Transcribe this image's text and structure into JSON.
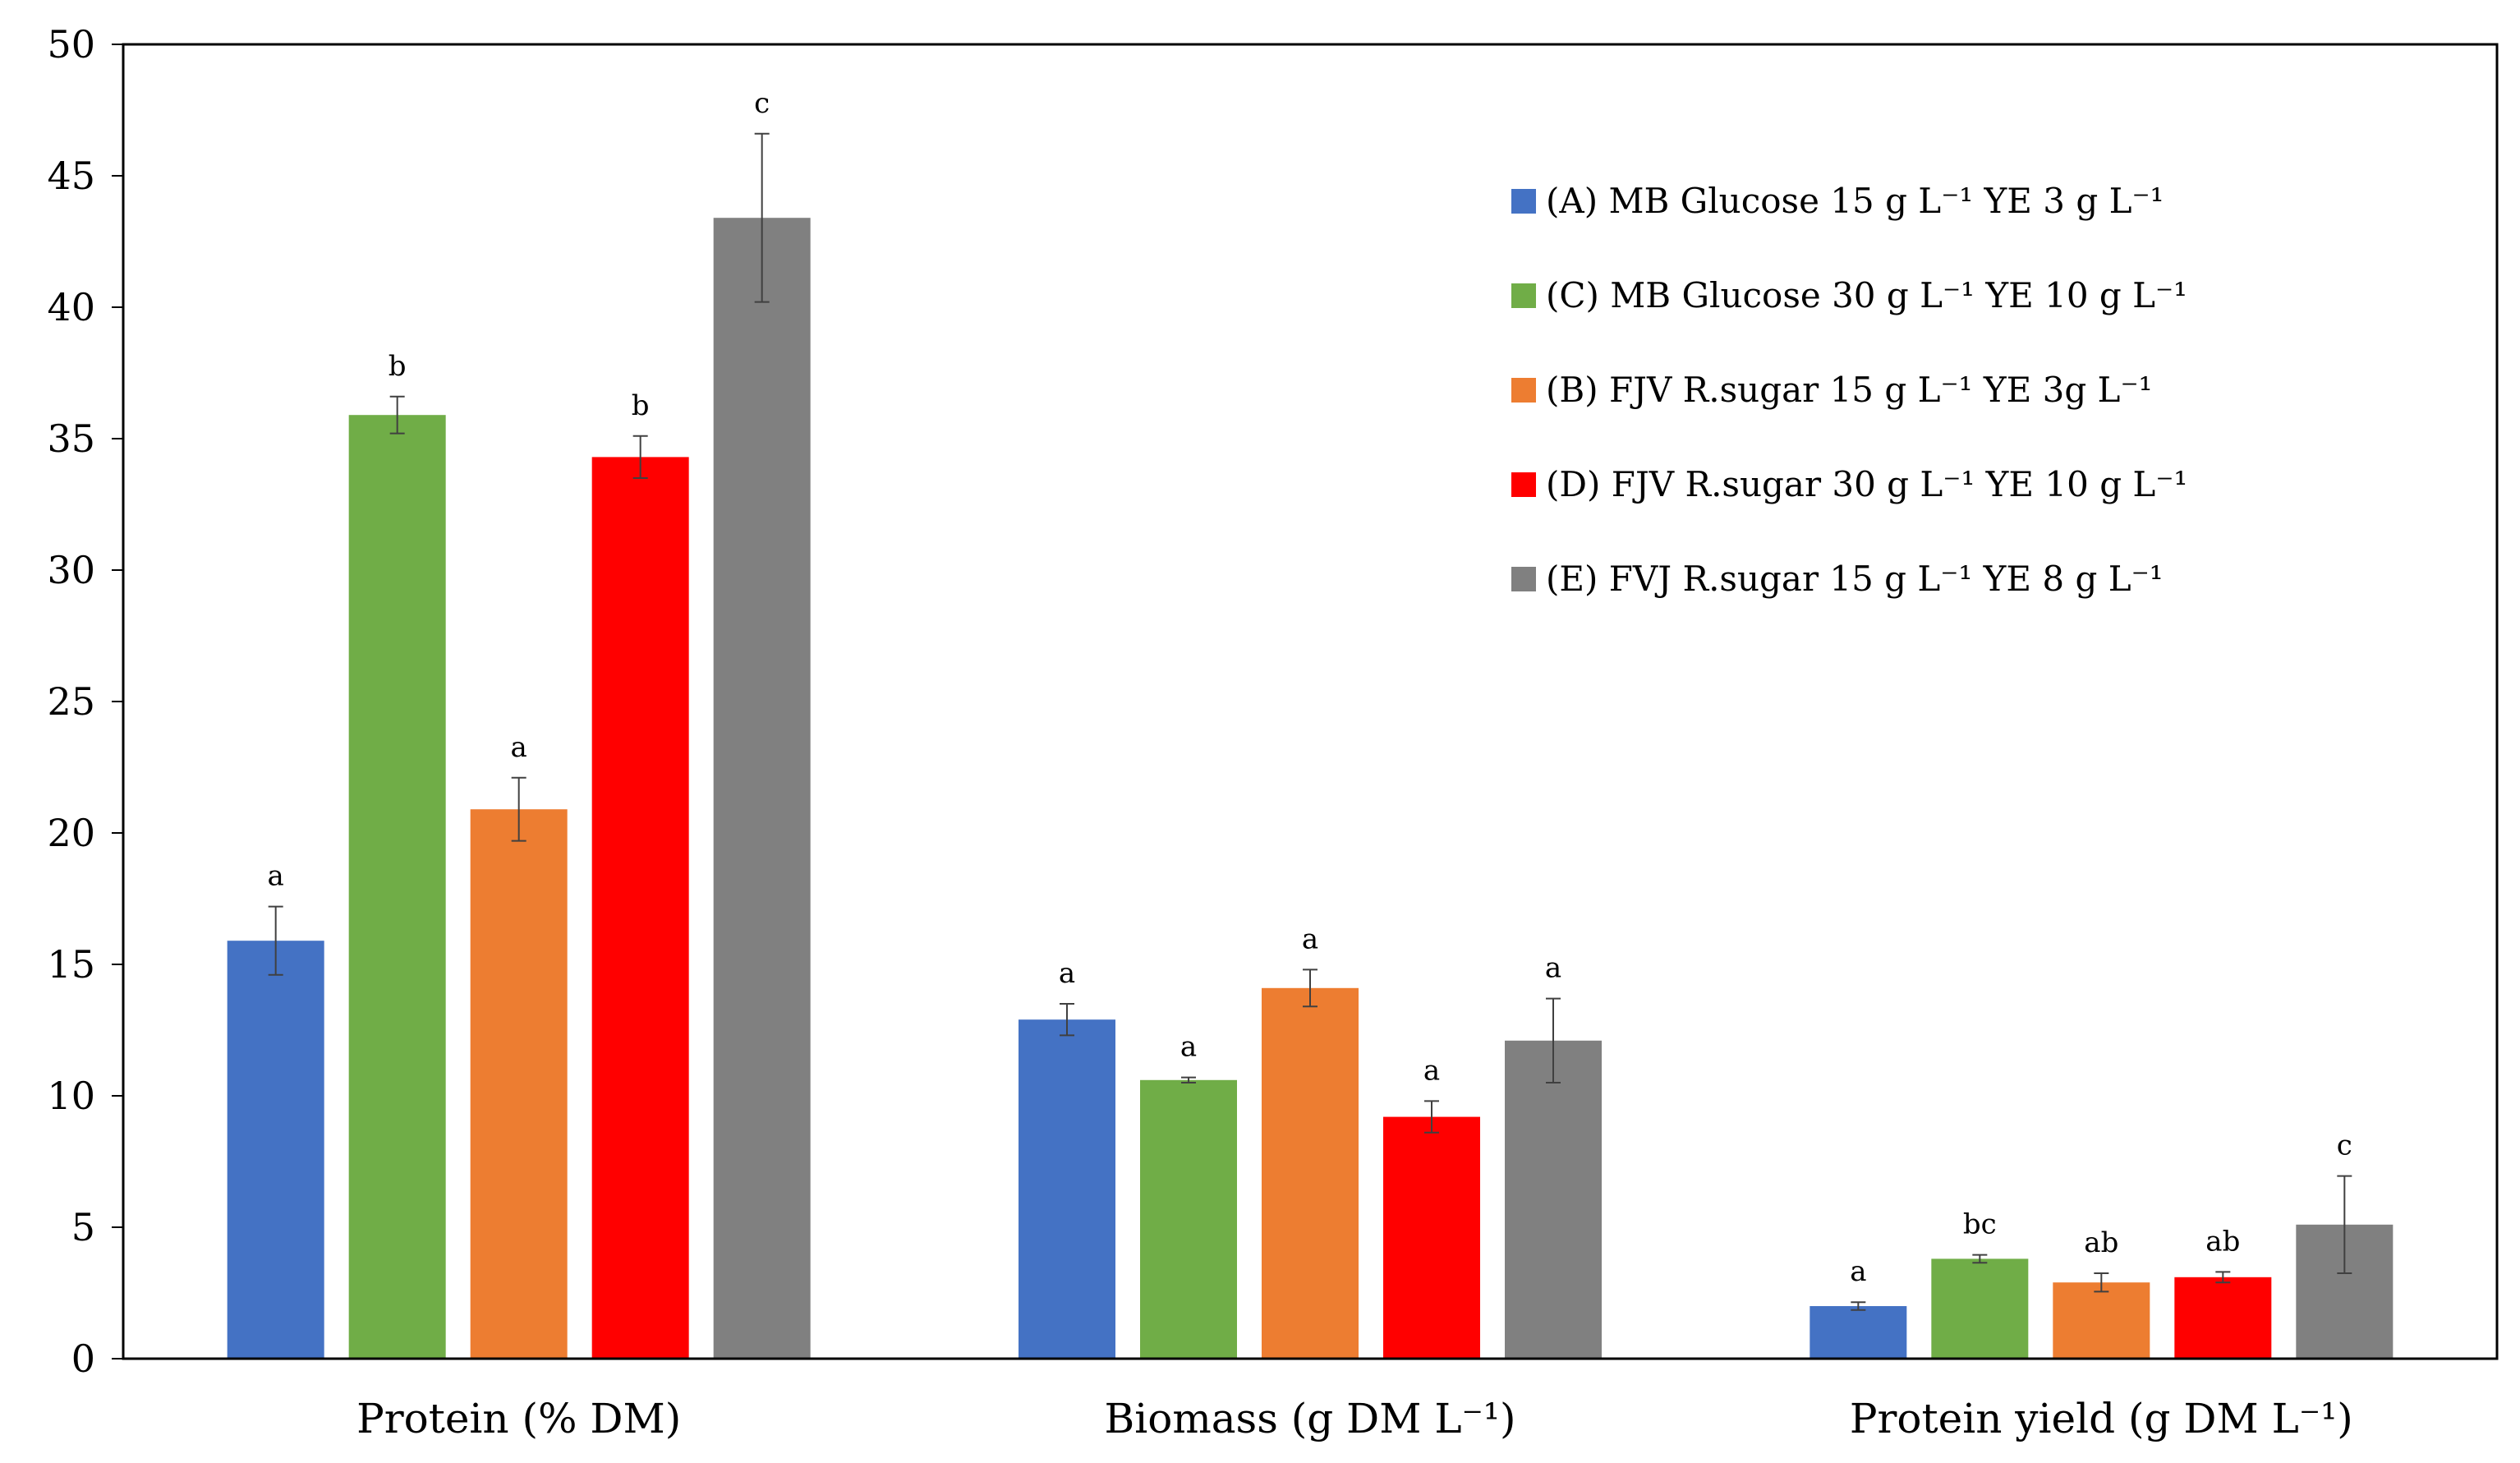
{
  "chart_data": {
    "type": "bar",
    "title": "",
    "xlabel": "",
    "ylabel": "",
    "ylim": [
      0,
      50
    ],
    "yticks": [
      0,
      5,
      10,
      15,
      20,
      25,
      30,
      35,
      40,
      45,
      50
    ],
    "categories": [
      "Protein (% DM)",
      "Biomass (g DM L⁻¹)",
      "Protein yield (g DM L⁻¹)"
    ],
    "series": [
      {
        "name": "(A) MB Glucose 15 g L⁻¹  YE 3 g L⁻¹",
        "color": "#4472C4",
        "values": [
          15.9,
          12.9,
          2.0
        ],
        "errors": [
          1.3,
          0.6,
          0.15
        ],
        "letters": [
          "a",
          "a",
          "a"
        ]
      },
      {
        "name": "(C) MB Glucose 30 g L⁻¹  YE 10 g L⁻¹",
        "color": "#70AD47",
        "values": [
          35.9,
          10.6,
          3.8
        ],
        "errors": [
          0.7,
          0.1,
          0.15
        ],
        "letters": [
          "b",
          "a",
          "bc"
        ]
      },
      {
        "name": "(B) FJV R.sugar 15 g L⁻¹  YE 3g L⁻¹",
        "color": "#ED7D31",
        "values": [
          20.9,
          14.1,
          2.9
        ],
        "errors": [
          1.2,
          0.7,
          0.35
        ],
        "letters": [
          "a",
          "a",
          "ab"
        ]
      },
      {
        "name": "(D) FJV R.sugar 30 g L⁻¹  YE 10 g L⁻¹",
        "color": "#FF0000",
        "values": [
          34.3,
          9.2,
          3.1
        ],
        "errors": [
          0.8,
          0.6,
          0.2
        ],
        "letters": [
          "b",
          "a",
          "ab"
        ]
      },
      {
        "name": "(E) FVJ R.sugar 15 g L⁻¹  YE 8 g L⁻¹",
        "color": "#808080",
        "values": [
          43.4,
          12.1,
          5.1
        ],
        "errors": [
          3.2,
          1.6,
          1.85
        ],
        "letters": [
          "c",
          "a",
          "c"
        ]
      }
    ],
    "grid": false,
    "legend_position": "top-right"
  }
}
